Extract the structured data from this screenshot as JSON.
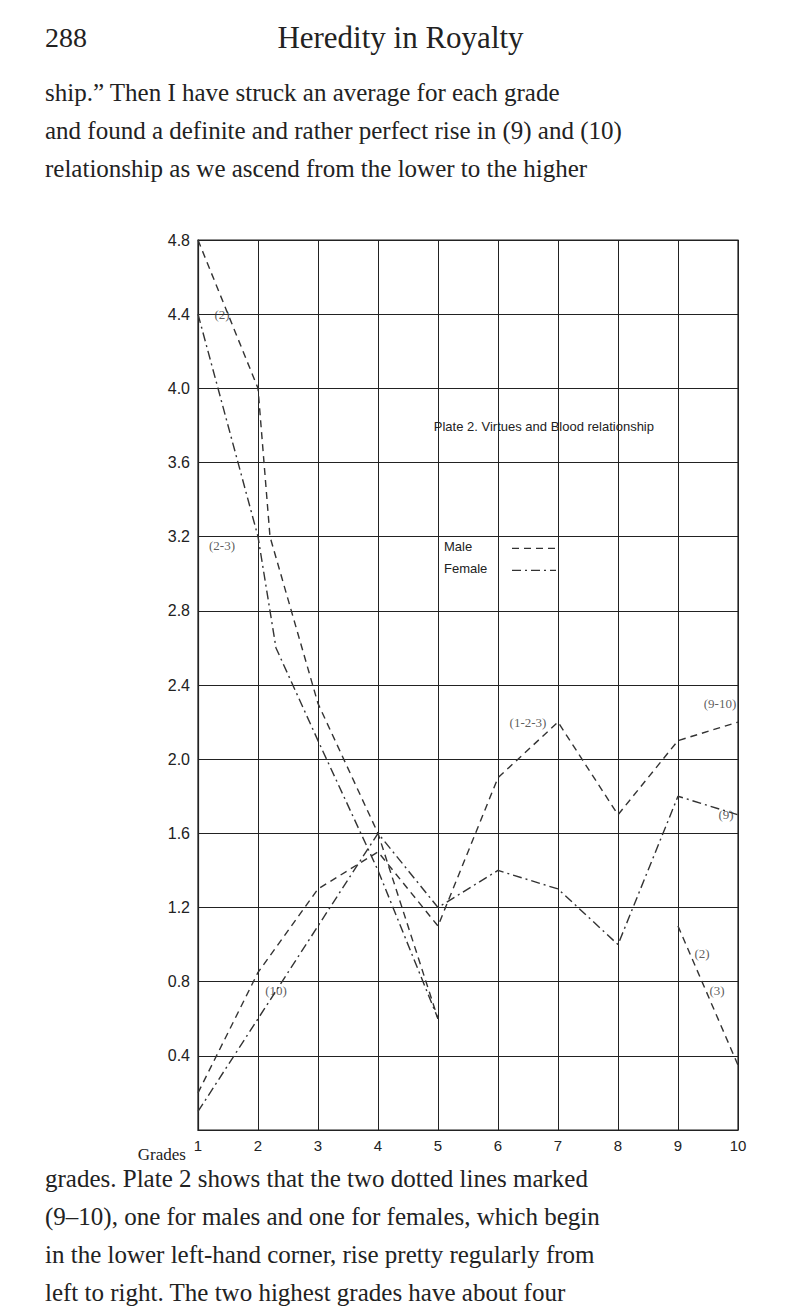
{
  "header": {
    "page": "288",
    "title": "Heredity in Royalty"
  },
  "text_above": [
    "ship.” Then I have struck an average for each grade",
    "and found a definite and rather perfect rise in (9) and (10)",
    "relationship as we ascend from the lower to the higher"
  ],
  "chart_data": {
    "type": "line",
    "title": "Plate 2. Virtues and Blood relationship",
    "x_label": "Grades",
    "xlim": [
      1,
      10
    ],
    "xticks": [
      1,
      2,
      3,
      4,
      5,
      6,
      7,
      8,
      9,
      10
    ],
    "ylim": [
      0,
      4.8
    ],
    "yticks": [
      0.4,
      0.8,
      1.2,
      1.6,
      {
        "value": 2,
        "label": "2.0"
      },
      2.4,
      2.8,
      3.2,
      3.6,
      {
        "value": 4,
        "label": "4.0"
      },
      4.4,
      4.8
    ],
    "grid": true,
    "series": [
      {
        "name": "Male",
        "color": "#333333",
        "line_style": "dashed",
        "x": [
          1,
          2,
          2.2,
          3,
          4,
          5,
          null,
          1,
          2,
          3,
          4,
          5,
          6,
          7,
          8,
          9,
          10,
          null,
          9,
          10
        ],
        "values": [
          4.8,
          4.0,
          3.2,
          2.3,
          1.6,
          0.6,
          null,
          0.2,
          0.85,
          1.3,
          1.5,
          1.1,
          1.9,
          2.2,
          1.7,
          2.1,
          2.2,
          null,
          1.1,
          0.35
        ]
      },
      {
        "name": "Female",
        "color": "#333333",
        "line_style": "dashdot",
        "x": [
          1,
          2,
          2.3,
          3,
          4,
          5,
          null,
          1,
          2,
          3,
          4,
          5,
          6,
          7,
          8,
          9,
          10
        ],
        "values": [
          4.4,
          3.2,
          2.6,
          2.1,
          1.4,
          0.6,
          null,
          0.1,
          0.6,
          1.1,
          1.6,
          1.2,
          1.4,
          1.3,
          1.0,
          1.8,
          1.7
        ]
      }
    ],
    "annotations": [
      {
        "text": "(2)",
        "x": 1.4,
        "y": 4.4
      },
      {
        "text": "(2-3)",
        "x": 1.4,
        "y": 3.15
      },
      {
        "text": "(10)",
        "x": 2.3,
        "y": 0.75
      },
      {
        "text": "(1-2-3)",
        "x": 6.5,
        "y": 2.2
      },
      {
        "text": "(9-10)",
        "x": 9.7,
        "y": 2.3
      },
      {
        "text": "(9)",
        "x": 9.8,
        "y": 1.7
      },
      {
        "text": "(2)",
        "x": 9.4,
        "y": 0.95
      },
      {
        "text": "(3)",
        "x": 9.65,
        "y": 0.75
      }
    ]
  },
  "text_below": [
    "grades. Plate 2 shows that the two dotted lines marked",
    "(9–10), one for males and one for females, which begin",
    "in the lower left-hand corner, rise pretty regularly from",
    "left to right. The two highest grades have about four"
  ]
}
